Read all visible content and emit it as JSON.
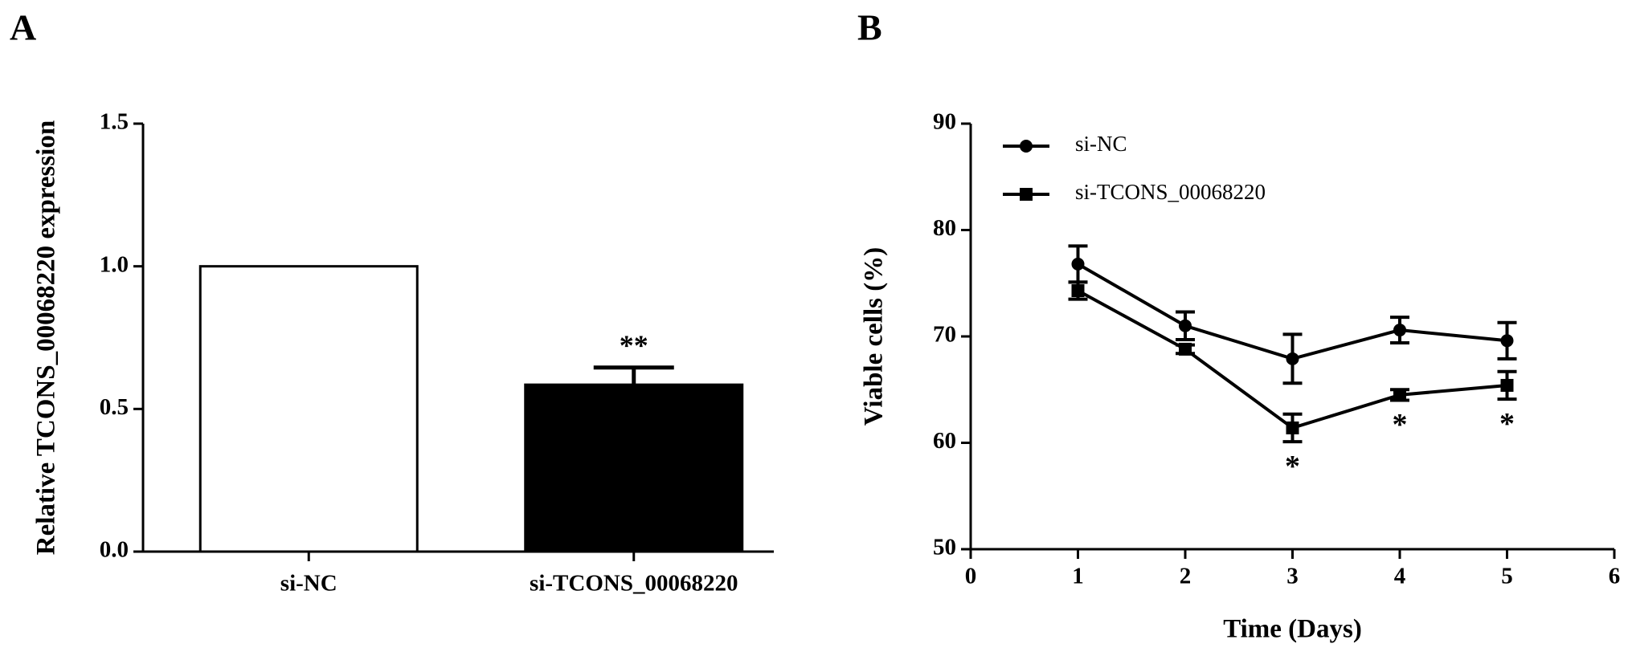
{
  "chart_data": [
    {
      "type": "bar",
      "panel": "A",
      "ylabel": "Relative TCONS_00068220 expression",
      "categories": [
        "si-NC",
        "si-TCONS_00068220"
      ],
      "values": [
        1.0,
        0.585
      ],
      "errors": [
        0,
        0.06
      ],
      "colors": [
        "#ffffff",
        "#000000"
      ],
      "annotations": [
        null,
        "**"
      ],
      "ylim": [
        0,
        1.5
      ],
      "yticks": [
        {
          "value": 0,
          "label": "0.0"
        },
        0.5,
        {
          "value": 1,
          "label": "1.0"
        },
        1.5
      ]
    },
    {
      "type": "line",
      "panel": "B",
      "xlabel": "Time (Days)",
      "ylabel": "Viable cells (%)",
      "x": [
        1,
        2,
        3,
        4,
        5
      ],
      "series": [
        {
          "name": "si-NC",
          "color": "#000000",
          "marker": "circle",
          "values": [
            76.8,
            71.0,
            67.9,
            70.6,
            69.6
          ],
          "errors": [
            1.7,
            1.3,
            2.3,
            1.2,
            1.7
          ],
          "annotations": [
            null,
            null,
            null,
            null,
            null
          ]
        },
        {
          "name": "si-TCONS_00068220",
          "color": "#000000",
          "marker": "square",
          "values": [
            74.3,
            68.8,
            61.4,
            64.5,
            65.4
          ],
          "errors": [
            0.8,
            0.4,
            1.3,
            0.5,
            1.3
          ],
          "annotations": [
            null,
            null,
            "*",
            "*",
            "*"
          ]
        }
      ],
      "xlim": [
        0,
        6
      ],
      "xticks": [
        0,
        1,
        2,
        3,
        4,
        5,
        6
      ],
      "ylim": [
        50,
        90
      ],
      "yticks": [
        50,
        60,
        70,
        80,
        90
      ]
    }
  ]
}
